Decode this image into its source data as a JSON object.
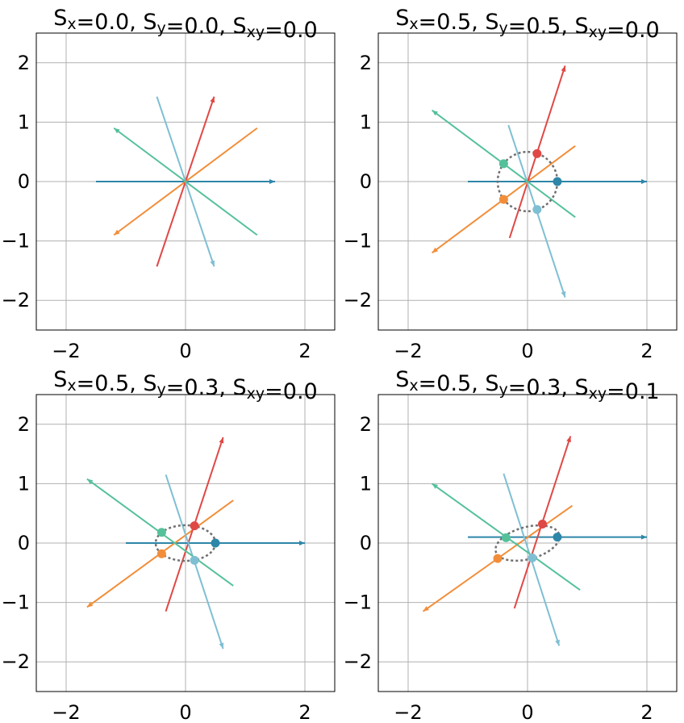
{
  "colors": {
    "grid": "#b0b0b0",
    "frame": "#000000",
    "ellipse": "#707070",
    "series": [
      "#2e86a8",
      "#f28e3a",
      "#e04845",
      "#7fbfd3",
      "#55c19b"
    ]
  },
  "chart_data": [
    {
      "type": "line",
      "title_parts": {
        "s": "S",
        "x": "x",
        "y": "y",
        "xy": "xy",
        "vx": "=0.0,",
        "vy": "=0.0,",
        "vxy": "=0.0"
      },
      "xlim": [
        -2.5,
        2.5
      ],
      "ylim": [
        -2.5,
        2.5
      ],
      "xticks": [
        -2,
        0,
        2
      ],
      "yticks": [
        -2,
        -1,
        0,
        1,
        2
      ],
      "xtick_labels": [
        "−2",
        "0",
        "2"
      ],
      "ytick_labels": [
        "−2",
        "−1",
        "0",
        "1",
        "2"
      ],
      "grid": true,
      "lines": [
        {
          "from": [
            -1.5,
            0
          ],
          "to": [
            1.5,
            0
          ],
          "arrow": "end"
        },
        {
          "from": [
            -1.2,
            -0.9
          ],
          "to": [
            1.2,
            0.9
          ],
          "arrow": "start"
        },
        {
          "from": [
            -0.48,
            -1.43
          ],
          "to": [
            0.48,
            1.43
          ],
          "arrow": "end"
        },
        {
          "from": [
            -0.48,
            1.43
          ],
          "to": [
            0.48,
            -1.43
          ],
          "arrow": "end"
        },
        {
          "from": [
            -1.2,
            0.9
          ],
          "to": [
            1.2,
            -0.9
          ],
          "arrow": "start"
        }
      ],
      "markers": [],
      "ellipse": null
    },
    {
      "type": "line",
      "title_parts": {
        "s": "S",
        "x": "x",
        "y": "y",
        "xy": "xy",
        "vx": "=0.5,",
        "vy": "=0.5,",
        "vxy": "=0.0"
      },
      "xlim": [
        -2.5,
        2.5
      ],
      "ylim": [
        -2.5,
        2.5
      ],
      "xticks": [
        -2,
        0,
        2
      ],
      "yticks": [
        -2,
        -1,
        0,
        1,
        2
      ],
      "xtick_labels": [
        "−2",
        "0",
        "2"
      ],
      "ytick_labels": [
        "−2",
        "−1",
        "0",
        "1",
        "2"
      ],
      "grid": true,
      "lines": [
        {
          "from": [
            -1.0,
            0
          ],
          "to": [
            2.0,
            0
          ],
          "arrow": "end"
        },
        {
          "from": [
            -1.6,
            -1.2
          ],
          "to": [
            0.8,
            0.6
          ],
          "arrow": "start"
        },
        {
          "from": [
            -0.3,
            -0.95
          ],
          "to": [
            0.63,
            1.95
          ],
          "arrow": "end"
        },
        {
          "from": [
            -0.32,
            0.95
          ],
          "to": [
            0.63,
            -1.95
          ],
          "arrow": "end"
        },
        {
          "from": [
            -1.6,
            1.2
          ],
          "to": [
            0.8,
            -0.6
          ],
          "arrow": "start"
        }
      ],
      "markers": [
        [
          0.5,
          0
        ],
        [
          -0.4,
          -0.3
        ],
        [
          0.16,
          0.47
        ],
        [
          0.16,
          -0.47
        ],
        [
          -0.4,
          0.3
        ]
      ],
      "ellipse": {
        "cx": 0,
        "cy": 0,
        "rx": 0.5,
        "ry": 0.5,
        "angle": 0
      }
    },
    {
      "type": "line",
      "title_parts": {
        "s": "S",
        "x": "x",
        "y": "y",
        "xy": "xy",
        "vx": "=0.5,",
        "vy": "=0.3,",
        "vxy": "=0.0"
      },
      "xlim": [
        -2.5,
        2.5
      ],
      "ylim": [
        -2.5,
        2.5
      ],
      "xticks": [
        -2,
        0,
        2
      ],
      "yticks": [
        -2,
        -1,
        0,
        1,
        2
      ],
      "xtick_labels": [
        "−2",
        "0",
        "2"
      ],
      "ytick_labels": [
        "−2",
        "−1",
        "0",
        "1",
        "2"
      ],
      "grid": true,
      "lines": [
        {
          "from": [
            -1.0,
            0
          ],
          "to": [
            2.0,
            0
          ],
          "arrow": "end"
        },
        {
          "from": [
            -1.65,
            -1.08
          ],
          "to": [
            0.8,
            0.72
          ],
          "arrow": "start"
        },
        {
          "from": [
            -0.33,
            -1.15
          ],
          "to": [
            0.63,
            1.78
          ],
          "arrow": "end"
        },
        {
          "from": [
            -0.33,
            1.15
          ],
          "to": [
            0.63,
            -1.78
          ],
          "arrow": "end"
        },
        {
          "from": [
            -1.65,
            1.08
          ],
          "to": [
            0.8,
            -0.72
          ],
          "arrow": "start"
        }
      ],
      "markers": [
        [
          0.5,
          0
        ],
        [
          -0.4,
          -0.18
        ],
        [
          0.15,
          0.29
        ],
        [
          0.15,
          -0.29
        ],
        [
          -0.4,
          0.18
        ]
      ],
      "ellipse": {
        "cx": 0,
        "cy": 0,
        "rx": 0.5,
        "ry": 0.3,
        "angle": 0
      }
    },
    {
      "type": "line",
      "title_parts": {
        "s": "S",
        "x": "x",
        "y": "y",
        "xy": "xy",
        "vx": "=0.5,",
        "vy": "=0.3,",
        "vxy": "=0.1"
      },
      "xlim": [
        -2.5,
        2.5
      ],
      "ylim": [
        -2.5,
        2.5
      ],
      "xticks": [
        -2,
        0,
        2
      ],
      "yticks": [
        -2,
        -1,
        0,
        1,
        2
      ],
      "xtick_labels": [
        "−2",
        "0",
        "2"
      ],
      "ytick_labels": [
        "−2",
        "−1",
        "0",
        "1",
        "2"
      ],
      "grid": true,
      "lines": [
        {
          "from": [
            -1.0,
            0.1
          ],
          "to": [
            2.0,
            0.1
          ],
          "arrow": "end"
        },
        {
          "from": [
            -1.75,
            -1.15
          ],
          "to": [
            0.75,
            0.63
          ],
          "arrow": "start"
        },
        {
          "from": [
            -0.22,
            -1.1
          ],
          "to": [
            0.72,
            1.8
          ],
          "arrow": "end"
        },
        {
          "from": [
            -0.4,
            1.17
          ],
          "to": [
            0.53,
            -1.73
          ],
          "arrow": "end"
        },
        {
          "from": [
            -1.6,
            1.0
          ],
          "to": [
            0.88,
            -0.79
          ],
          "arrow": "start"
        }
      ],
      "markers": [
        [
          0.5,
          0.1
        ],
        [
          -0.5,
          -0.26
        ],
        [
          0.25,
          0.32
        ],
        [
          0.08,
          -0.25
        ],
        [
          -0.36,
          0.09
        ]
      ],
      "ellipse": {
        "cx": 0,
        "cy": 0,
        "rx": 0.55,
        "ry": 0.27,
        "angle": 15
      }
    }
  ]
}
